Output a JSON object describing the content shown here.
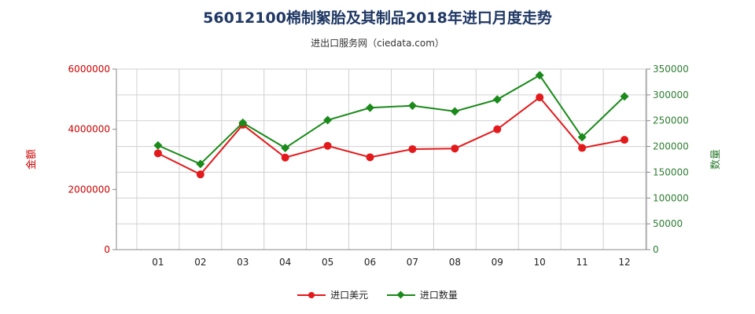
{
  "title": "56012100棉制絮胎及其制品2018年进口月度走势",
  "subtitle": "进出口服务网（ciedata.com）",
  "chart_data": {
    "type": "line",
    "categories": [
      "01",
      "02",
      "03",
      "04",
      "05",
      "06",
      "07",
      "08",
      "09",
      "10",
      "11",
      "12"
    ],
    "ylabel_left": "金额",
    "ylabel_right": "数量",
    "ylim_left": [
      0,
      6000000
    ],
    "ylim_right": [
      0,
      350000
    ],
    "yticks_left": [
      "0",
      "2000000",
      "4000000",
      "6000000"
    ],
    "yticks_right": [
      "0",
      "50000",
      "100000",
      "150000",
      "200000",
      "250000",
      "300000",
      "350000"
    ],
    "grid": true,
    "legend_position": "bottom",
    "series": [
      {
        "name": "进口美元",
        "axis": "left",
        "color": "#e31a1c",
        "marker": "circle",
        "values": [
          3200000,
          2500000,
          4150000,
          3060000,
          3450000,
          3070000,
          3340000,
          3360000,
          4000000,
          5060000,
          3380000,
          3650000
        ]
      },
      {
        "name": "进口数量",
        "axis": "right",
        "color": "#1a8a1a",
        "marker": "diamond",
        "values": [
          202000,
          166000,
          246000,
          197000,
          251000,
          275000,
          279000,
          268000,
          291000,
          338000,
          218000,
          297000
        ]
      }
    ]
  }
}
